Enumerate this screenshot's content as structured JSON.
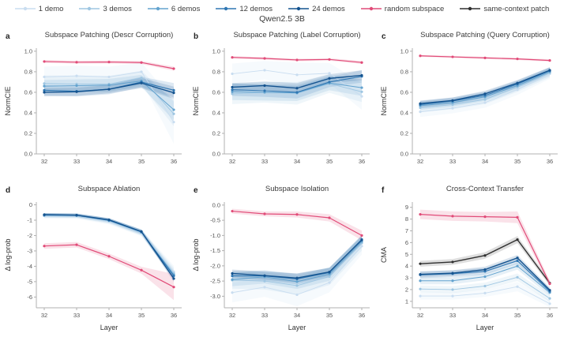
{
  "figure_title": "Qwen2.5 3B",
  "legend": [
    {
      "key": "demo1",
      "label": "1 demo",
      "color": "#c9ddf0"
    },
    {
      "key": "demo3",
      "label": "3 demos",
      "color": "#9ec6e2"
    },
    {
      "key": "demo6",
      "label": "6 demos",
      "color": "#63a3cf"
    },
    {
      "key": "demo12",
      "label": "12 demos",
      "color": "#2f77b3"
    },
    {
      "key": "demo24",
      "label": "24 demos",
      "color": "#14538f"
    },
    {
      "key": "random",
      "label": "random subspace",
      "color": "#e14b78"
    },
    {
      "key": "same",
      "label": "same-context patch",
      "color": "#2f2f2f"
    }
  ],
  "chart_data": [
    {
      "letter": "a",
      "type": "line",
      "title": "Subspace Patching (Descr Corruption)",
      "xlabel": "",
      "ylabel": "NormCIE",
      "x": [
        32,
        33,
        34,
        35,
        36
      ],
      "xtick_labels": [
        "32",
        "33",
        "34",
        "35",
        "36"
      ],
      "ylim": [
        0,
        1.03
      ],
      "yticks": [
        0.0,
        0.2,
        0.4,
        0.6,
        0.8,
        1.0
      ],
      "ytick_labels": [
        "0.0",
        "0.2",
        "0.4",
        "0.6",
        "0.8",
        "1.0"
      ],
      "series": [
        {
          "key": "demo1",
          "name": "1 demo",
          "values": [
            0.75,
            0.76,
            0.75,
            0.8,
            0.31
          ],
          "band": [
            0.1,
            0.1,
            0.1,
            0.09,
            0.21
          ]
        },
        {
          "key": "demo3",
          "name": "3 demos",
          "values": [
            0.685,
            0.68,
            0.68,
            0.74,
            0.39
          ],
          "band": [
            0.08,
            0.08,
            0.08,
            0.07,
            0.12
          ]
        },
        {
          "key": "demo6",
          "name": "6 demos",
          "values": [
            0.66,
            0.665,
            0.67,
            0.71,
            0.43
          ],
          "band": [
            0.06,
            0.06,
            0.06,
            0.06,
            0.1
          ]
        },
        {
          "key": "demo12",
          "name": "12 demos",
          "values": [
            0.62,
            0.61,
            0.63,
            0.7,
            0.62
          ],
          "band": [
            0.05,
            0.05,
            0.05,
            0.05,
            0.07
          ]
        },
        {
          "key": "demo24",
          "name": "24 demos",
          "values": [
            0.6,
            0.605,
            0.63,
            0.69,
            0.595
          ],
          "band": [
            0.04,
            0.04,
            0.04,
            0.05,
            0.06
          ]
        },
        {
          "key": "random",
          "name": "random subspace",
          "values": [
            0.9,
            0.893,
            0.895,
            0.89,
            0.83
          ],
          "band": [
            0.015,
            0.015,
            0.015,
            0.015,
            0.02
          ]
        }
      ]
    },
    {
      "letter": "b",
      "type": "line",
      "title": "Subspace Patching (Label Corruption)",
      "xlabel": "",
      "ylabel": "NormCIE",
      "x": [
        32,
        33,
        34,
        35,
        36
      ],
      "xtick_labels": [
        "32",
        "33",
        "34",
        "35",
        "36"
      ],
      "ylim": [
        0,
        1.03
      ],
      "yticks": [
        0.0,
        0.2,
        0.4,
        0.6,
        0.8,
        1.0
      ],
      "ytick_labels": [
        "0.0",
        "0.2",
        "0.4",
        "0.6",
        "0.8",
        "1.0"
      ],
      "series": [
        {
          "key": "demo1",
          "name": "1 demo",
          "values": [
            0.78,
            0.815,
            0.77,
            0.785,
            0.56
          ],
          "band": [
            0.1,
            0.09,
            0.12,
            0.1,
            0.13
          ]
        },
        {
          "key": "demo3",
          "name": "3 demos",
          "values": [
            0.585,
            0.6,
            0.59,
            0.685,
            0.605
          ],
          "band": [
            0.1,
            0.1,
            0.11,
            0.09,
            0.1
          ]
        },
        {
          "key": "demo6",
          "name": "6 demos",
          "values": [
            0.605,
            0.6,
            0.595,
            0.69,
            0.645
          ],
          "band": [
            0.08,
            0.08,
            0.08,
            0.07,
            0.08
          ]
        },
        {
          "key": "demo12",
          "name": "12 demos",
          "values": [
            0.625,
            0.615,
            0.6,
            0.7,
            0.755
          ],
          "band": [
            0.06,
            0.06,
            0.06,
            0.05,
            0.06
          ]
        },
        {
          "key": "demo24",
          "name": "24 demos",
          "values": [
            0.65,
            0.665,
            0.64,
            0.735,
            0.765
          ],
          "band": [
            0.04,
            0.04,
            0.05,
            0.04,
            0.05
          ]
        },
        {
          "key": "random",
          "name": "random subspace",
          "values": [
            0.94,
            0.93,
            0.915,
            0.92,
            0.89
          ],
          "band": [
            0.012,
            0.012,
            0.012,
            0.012,
            0.015
          ]
        }
      ]
    },
    {
      "letter": "c",
      "type": "line",
      "title": "Subspace Patching (Query Corruption)",
      "xlabel": "",
      "ylabel": "NormCIE",
      "x": [
        32,
        33,
        34,
        35,
        36
      ],
      "xtick_labels": [
        "32",
        "33",
        "34",
        "35",
        "36"
      ],
      "ylim": [
        0,
        1.03
      ],
      "yticks": [
        0.0,
        0.2,
        0.4,
        0.6,
        0.8,
        1.0
      ],
      "ytick_labels": [
        "0.0",
        "0.2",
        "0.4",
        "0.6",
        "0.8",
        "1.0"
      ],
      "series": [
        {
          "key": "demo1",
          "name": "1 demo",
          "values": [
            0.41,
            0.445,
            0.5,
            0.625,
            0.78
          ],
          "band": [
            0.05,
            0.05,
            0.05,
            0.05,
            0.05
          ]
        },
        {
          "key": "demo3",
          "name": "3 demos",
          "values": [
            0.45,
            0.48,
            0.53,
            0.65,
            0.79
          ],
          "band": [
            0.045,
            0.045,
            0.045,
            0.045,
            0.045
          ]
        },
        {
          "key": "demo6",
          "name": "6 demos",
          "values": [
            0.47,
            0.5,
            0.555,
            0.665,
            0.8
          ],
          "band": [
            0.04,
            0.04,
            0.04,
            0.04,
            0.04
          ]
        },
        {
          "key": "demo12",
          "name": "12 demos",
          "values": [
            0.48,
            0.515,
            0.57,
            0.68,
            0.81
          ],
          "band": [
            0.035,
            0.035,
            0.035,
            0.035,
            0.035
          ]
        },
        {
          "key": "demo24",
          "name": "24 demos",
          "values": [
            0.49,
            0.52,
            0.585,
            0.69,
            0.815
          ],
          "band": [
            0.03,
            0.03,
            0.03,
            0.03,
            0.03
          ]
        },
        {
          "key": "random",
          "name": "random subspace",
          "values": [
            0.955,
            0.945,
            0.935,
            0.925,
            0.91
          ],
          "band": [
            0.01,
            0.01,
            0.01,
            0.01,
            0.012
          ]
        }
      ]
    },
    {
      "letter": "d",
      "type": "line",
      "title": "Subspace Ablation",
      "xlabel": "Layer",
      "ylabel": "Δ log-prob",
      "x": [
        32,
        33,
        34,
        35,
        36
      ],
      "xtick_labels": [
        "32",
        "33",
        "34",
        "35",
        "36"
      ],
      "ylim": [
        -6.7,
        0.18
      ],
      "yticks": [
        0,
        -1,
        -2,
        -3,
        -4,
        -5,
        -6
      ],
      "ytick_labels": [
        "0",
        "-1",
        "-2",
        "-3",
        "-4",
        "-5",
        "-6"
      ],
      "series": [
        {
          "key": "demo1",
          "name": "1 demo",
          "values": [
            -0.72,
            -0.73,
            -1.08,
            -1.82,
            -4.35
          ],
          "band": [
            0.18,
            0.18,
            0.2,
            0.22,
            0.4
          ]
        },
        {
          "key": "demo3",
          "name": "3 demos",
          "values": [
            -0.7,
            -0.71,
            -1.05,
            -1.8,
            -4.45
          ],
          "band": [
            0.15,
            0.15,
            0.17,
            0.2,
            0.35
          ]
        },
        {
          "key": "demo6",
          "name": "6 demos",
          "values": [
            -0.68,
            -0.7,
            -1.02,
            -1.78,
            -4.55
          ],
          "band": [
            0.13,
            0.13,
            0.15,
            0.17,
            0.3
          ]
        },
        {
          "key": "demo12",
          "name": "12 demos",
          "values": [
            -0.66,
            -0.68,
            -1.0,
            -1.76,
            -4.62
          ],
          "band": [
            0.11,
            0.11,
            0.12,
            0.14,
            0.25
          ]
        },
        {
          "key": "demo24",
          "name": "24 demos",
          "values": [
            -0.64,
            -0.67,
            -0.98,
            -1.74,
            -4.8
          ],
          "band": [
            0.1,
            0.1,
            0.11,
            0.12,
            0.22
          ]
        },
        {
          "key": "random",
          "name": "random subspace",
          "values": [
            -2.68,
            -2.6,
            -3.35,
            -4.25,
            -5.35
          ],
          "band": [
            0.18,
            0.18,
            0.18,
            0.22,
            0.85
          ]
        }
      ]
    },
    {
      "letter": "e",
      "type": "line",
      "title": "Subspace Isolation",
      "xlabel": "Layer",
      "ylabel": "Δ log-prob",
      "x": [
        32,
        33,
        34,
        35,
        36
      ],
      "xtick_labels": [
        "32",
        "33",
        "34",
        "35",
        "36"
      ],
      "ylim": [
        -3.38,
        0.1
      ],
      "yticks": [
        0.0,
        -0.5,
        -1.0,
        -1.5,
        -2.0,
        -2.5,
        -3.0
      ],
      "ytick_labels": [
        "0.0",
        "-0.5",
        "-1.0",
        "-1.5",
        "-2.0",
        "-2.5",
        "-3.0"
      ],
      "series": [
        {
          "key": "demo1",
          "name": "1 demo",
          "values": [
            -2.88,
            -2.7,
            -2.95,
            -2.55,
            -1.35
          ],
          "band": [
            0.32,
            0.32,
            0.38,
            0.32,
            0.28
          ]
        },
        {
          "key": "demo3",
          "name": "3 demos",
          "values": [
            -2.47,
            -2.5,
            -2.65,
            -2.35,
            -1.25
          ],
          "band": [
            0.28,
            0.28,
            0.3,
            0.28,
            0.25
          ]
        },
        {
          "key": "demo6",
          "name": "6 demos",
          "values": [
            -2.45,
            -2.36,
            -2.52,
            -2.27,
            -1.2
          ],
          "band": [
            0.22,
            0.22,
            0.24,
            0.22,
            0.2
          ]
        },
        {
          "key": "demo12",
          "name": "12 demos",
          "values": [
            -2.33,
            -2.33,
            -2.43,
            -2.22,
            -1.13
          ],
          "band": [
            0.16,
            0.16,
            0.18,
            0.16,
            0.15
          ]
        },
        {
          "key": "demo24",
          "name": "24 demos",
          "values": [
            -2.25,
            -2.32,
            -2.4,
            -2.2,
            -1.15
          ],
          "band": [
            0.13,
            0.13,
            0.15,
            0.13,
            0.13
          ]
        },
        {
          "key": "random",
          "name": "random subspace",
          "values": [
            -0.2,
            -0.29,
            -0.31,
            -0.42,
            -1.0
          ],
          "band": [
            0.08,
            0.08,
            0.1,
            0.12,
            0.16
          ]
        }
      ]
    },
    {
      "letter": "f",
      "type": "line",
      "title": "Cross-Context Transfer",
      "xlabel": "Layer",
      "ylabel": "CMA",
      "x": [
        32,
        33,
        34,
        35,
        36
      ],
      "xtick_labels": [
        "32",
        "33",
        "34",
        "35",
        "36"
      ],
      "ylim": [
        0.45,
        9.45
      ],
      "yticks": [
        1,
        2,
        3,
        4,
        5,
        6,
        7,
        8,
        9
      ],
      "ytick_labels": [
        "1",
        "2",
        "3",
        "4",
        "5",
        "6",
        "7",
        "8",
        "9"
      ],
      "series": [
        {
          "key": "demo1",
          "name": "1 demo",
          "values": [
            1.45,
            1.45,
            1.7,
            2.25,
            0.8
          ],
          "band": [
            0.3,
            0.3,
            0.32,
            0.4,
            0.28
          ]
        },
        {
          "key": "demo3",
          "name": "3 demos",
          "values": [
            2.05,
            2.0,
            2.3,
            3.05,
            1.25
          ],
          "band": [
            0.3,
            0.3,
            0.3,
            0.32,
            0.3
          ]
        },
        {
          "key": "demo6",
          "name": "6 demos",
          "values": [
            2.75,
            2.75,
            3.1,
            4.0,
            1.75
          ],
          "band": [
            0.3,
            0.3,
            0.3,
            0.3,
            0.28
          ]
        },
        {
          "key": "demo12",
          "name": "12 demos",
          "values": [
            3.25,
            3.35,
            3.55,
            4.45,
            1.85
          ],
          "band": [
            0.28,
            0.28,
            0.28,
            0.28,
            0.25
          ]
        },
        {
          "key": "demo24",
          "name": "24 demos",
          "values": [
            3.3,
            3.4,
            3.7,
            4.7,
            1.95
          ],
          "band": [
            0.25,
            0.25,
            0.25,
            0.25,
            0.22
          ]
        },
        {
          "key": "same",
          "name": "same-context patch",
          "values": [
            4.2,
            4.35,
            4.9,
            6.25,
            2.55
          ],
          "band": [
            0.25,
            0.25,
            0.28,
            0.3,
            0.2
          ]
        },
        {
          "key": "random",
          "name": "random subspace",
          "values": [
            8.4,
            8.25,
            8.2,
            8.15,
            2.5
          ],
          "band": [
            0.4,
            0.4,
            0.4,
            0.5,
            0.25
          ]
        }
      ]
    }
  ]
}
